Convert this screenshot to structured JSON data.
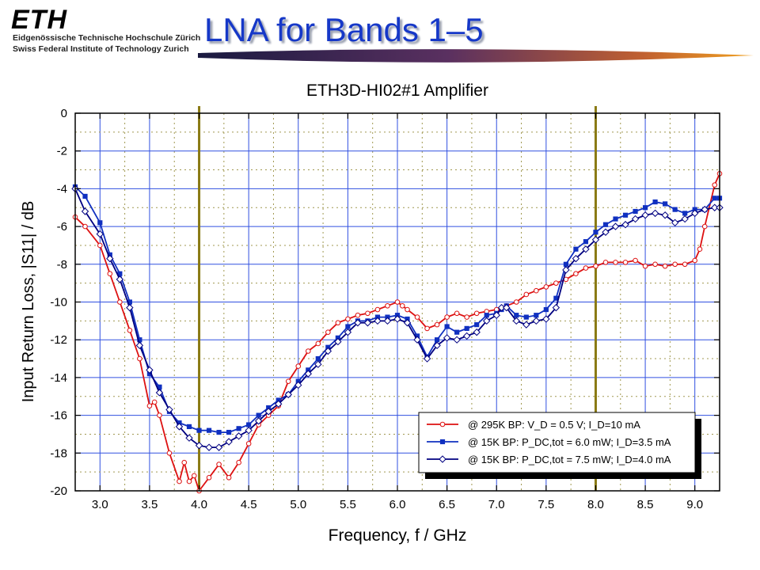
{
  "header": {
    "logo": "ETH",
    "institution_line1": "Eidgenössische Technische Hochschule Zürich",
    "institution_line2": "Swiss Federal Institute of Technology Zurich",
    "slide_title": "LNA for Bands 1–5"
  },
  "colors": {
    "title": "#1638c8",
    "series": [
      "#dd1111",
      "#1030c0",
      "#000080"
    ],
    "vertical_markers": "#8a7a14",
    "grid_blue": "#3050e0"
  },
  "chart_data": {
    "type": "line",
    "title": "ETH3D-HI02#1 Amplifier",
    "xlabel": "Frequency, f / GHz",
    "ylabel": "Input Return Loss, |S11| / dB",
    "xlim": [
      2.75,
      9.25
    ],
    "ylim": [
      -20,
      0
    ],
    "xticks": [
      "3.0",
      "3.5",
      "4.0",
      "4.5",
      "5.0",
      "5.5",
      "6.0",
      "6.5",
      "7.0",
      "7.5",
      "8.0",
      "8.5",
      "9.0"
    ],
    "yticks": [
      "0",
      "-2",
      "-4",
      "-6",
      "-8",
      "-10",
      "-12",
      "-14",
      "-16",
      "-18",
      "-20"
    ],
    "vertical_markers": [
      4.0,
      8.0
    ],
    "grid": true,
    "legend_position": "bottom-right",
    "series": [
      {
        "name": "@ 295K BP: V_D = 0.5 V; I_D=10 mA",
        "marker": "circle",
        "x": [
          2.75,
          2.85,
          3.0,
          3.1,
          3.2,
          3.3,
          3.4,
          3.5,
          3.55,
          3.6,
          3.7,
          3.8,
          3.85,
          3.9,
          3.95,
          4.0,
          4.1,
          4.2,
          4.3,
          4.4,
          4.5,
          4.6,
          4.7,
          4.8,
          4.9,
          5.0,
          5.1,
          5.2,
          5.3,
          5.4,
          5.5,
          5.6,
          5.7,
          5.8,
          5.9,
          6.0,
          6.05,
          6.1,
          6.2,
          6.3,
          6.4,
          6.5,
          6.6,
          6.7,
          6.8,
          6.9,
          7.0,
          7.1,
          7.2,
          7.3,
          7.4,
          7.5,
          7.6,
          7.7,
          7.8,
          7.9,
          8.0,
          8.1,
          8.2,
          8.3,
          8.4,
          8.5,
          8.6,
          8.7,
          8.8,
          8.9,
          9.0,
          9.05,
          9.1,
          9.2,
          9.25
        ],
        "y": [
          -5.5,
          -6.0,
          -7.0,
          -8.5,
          -10.0,
          -11.5,
          -13.0,
          -15.5,
          -15.3,
          -16.0,
          -18.0,
          -19.5,
          -18.5,
          -19.5,
          -19.2,
          -20.0,
          -19.3,
          -18.6,
          -19.3,
          -18.5,
          -17.5,
          -16.5,
          -16.0,
          -15.5,
          -14.2,
          -13.4,
          -12.6,
          -12.2,
          -11.6,
          -11.1,
          -10.9,
          -10.7,
          -10.6,
          -10.4,
          -10.2,
          -10.0,
          -10.2,
          -10.4,
          -10.8,
          -11.4,
          -11.2,
          -10.8,
          -10.6,
          -10.8,
          -10.6,
          -10.5,
          -10.4,
          -10.2,
          -10.0,
          -9.6,
          -9.4,
          -9.2,
          -9.0,
          -8.8,
          -8.5,
          -8.2,
          -8.1,
          -7.9,
          -7.9,
          -7.9,
          -7.8,
          -8.1,
          -8.0,
          -8.1,
          -8.0,
          -8.0,
          -7.8,
          -7.2,
          -6.0,
          -3.8,
          -3.2
        ]
      },
      {
        "name": "@  15K BP: P_DC,tot = 6.0 mW; I_D=3.5 mA",
        "marker": "square",
        "x": [
          2.75,
          2.85,
          3.0,
          3.1,
          3.2,
          3.3,
          3.4,
          3.5,
          3.6,
          3.7,
          3.8,
          3.9,
          4.0,
          4.1,
          4.2,
          4.3,
          4.4,
          4.5,
          4.6,
          4.7,
          4.8,
          4.9,
          5.0,
          5.1,
          5.2,
          5.3,
          5.4,
          5.5,
          5.6,
          5.7,
          5.8,
          5.9,
          6.0,
          6.1,
          6.2,
          6.3,
          6.4,
          6.5,
          6.6,
          6.7,
          6.8,
          6.9,
          7.0,
          7.05,
          7.1,
          7.2,
          7.3,
          7.4,
          7.5,
          7.6,
          7.7,
          7.8,
          7.9,
          8.0,
          8.1,
          8.2,
          8.3,
          8.4,
          8.5,
          8.6,
          8.7,
          8.8,
          8.9,
          9.0,
          9.1,
          9.2,
          9.25
        ],
        "y": [
          -3.9,
          -4.4,
          -5.8,
          -7.5,
          -8.5,
          -10.0,
          -12.0,
          -13.8,
          -14.5,
          -15.8,
          -16.4,
          -16.6,
          -16.8,
          -16.8,
          -16.9,
          -16.9,
          -16.7,
          -16.5,
          -16.0,
          -15.6,
          -15.2,
          -14.9,
          -14.2,
          -13.6,
          -13.0,
          -12.4,
          -11.9,
          -11.3,
          -11.0,
          -11.0,
          -10.8,
          -10.8,
          -10.7,
          -10.9,
          -11.8,
          -12.9,
          -12.0,
          -11.3,
          -11.6,
          -11.4,
          -11.2,
          -10.7,
          -10.6,
          -10.4,
          -10.2,
          -10.7,
          -10.8,
          -10.7,
          -10.4,
          -9.8,
          -8.0,
          -7.2,
          -6.8,
          -6.3,
          -5.9,
          -5.6,
          -5.4,
          -5.2,
          -5.0,
          -4.7,
          -4.8,
          -5.1,
          -5.3,
          -5.1,
          -5.1,
          -4.5,
          -4.5
        ]
      },
      {
        "name": "@  15K BP: P_DC,tot = 7.5 mW; I_D=4.0 mA",
        "marker": "diamond",
        "x": [
          2.75,
          2.85,
          3.0,
          3.1,
          3.2,
          3.3,
          3.4,
          3.5,
          3.6,
          3.7,
          3.8,
          3.9,
          4.0,
          4.1,
          4.2,
          4.3,
          4.4,
          4.5,
          4.6,
          4.7,
          4.8,
          4.9,
          5.0,
          5.1,
          5.2,
          5.3,
          5.4,
          5.5,
          5.6,
          5.7,
          5.8,
          5.9,
          6.0,
          6.1,
          6.2,
          6.3,
          6.4,
          6.5,
          6.6,
          6.7,
          6.8,
          6.9,
          7.0,
          7.05,
          7.1,
          7.2,
          7.3,
          7.4,
          7.5,
          7.6,
          7.7,
          7.8,
          7.9,
          8.0,
          8.1,
          8.2,
          8.3,
          8.4,
          8.5,
          8.6,
          8.7,
          8.8,
          8.9,
          9.0,
          9.1,
          9.2,
          9.25
        ],
        "y": [
          -4.0,
          -5.2,
          -6.4,
          -7.7,
          -8.8,
          -10.3,
          -12.3,
          -13.6,
          -14.8,
          -15.7,
          -16.6,
          -17.2,
          -17.6,
          -17.7,
          -17.7,
          -17.4,
          -17.1,
          -16.8,
          -16.3,
          -15.8,
          -15.4,
          -14.9,
          -14.4,
          -13.8,
          -13.3,
          -12.6,
          -12.1,
          -11.6,
          -11.1,
          -11.1,
          -11.0,
          -11.0,
          -10.9,
          -11.1,
          -12.0,
          -13.0,
          -12.3,
          -11.9,
          -12.0,
          -11.8,
          -11.6,
          -11.0,
          -10.7,
          -10.3,
          -10.3,
          -11.0,
          -11.2,
          -11.0,
          -10.9,
          -10.3,
          -8.3,
          -7.7,
          -7.2,
          -6.7,
          -6.3,
          -6.0,
          -5.9,
          -5.6,
          -5.4,
          -5.3,
          -5.4,
          -5.8,
          -5.6,
          -5.3,
          -5.1,
          -5.0,
          -5.0
        ]
      }
    ]
  }
}
